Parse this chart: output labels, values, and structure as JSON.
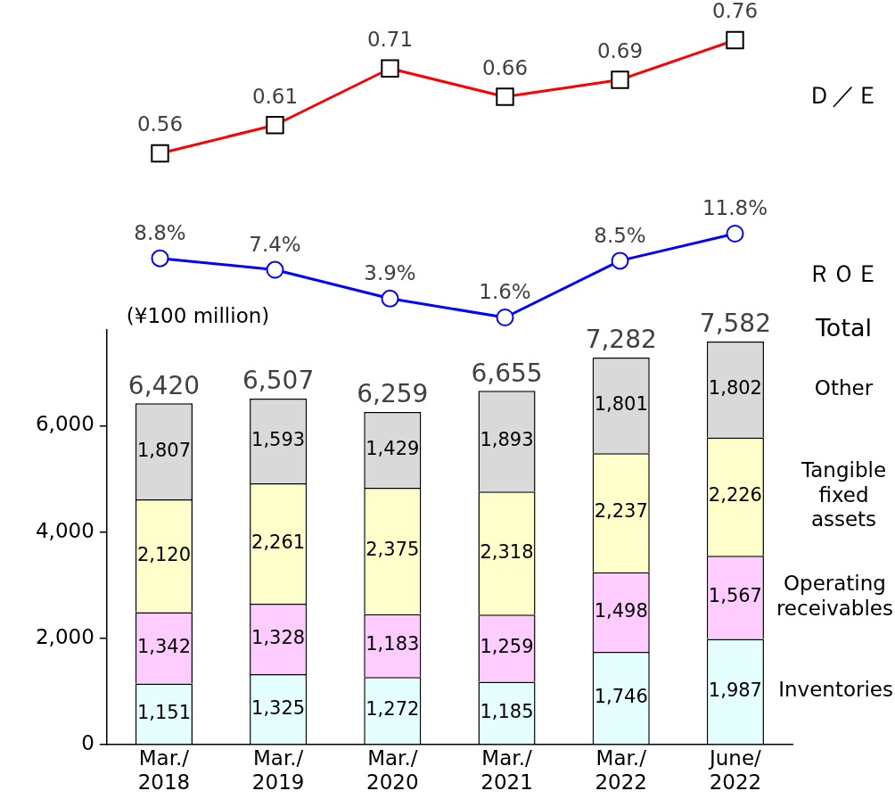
{
  "chart_data": [
    {
      "type": "line",
      "categories": [
        null,
        null,
        null,
        null,
        null,
        null
      ],
      "marker": "square",
      "series": [
        {
          "name": "Ｄ／Ｅ",
          "color": "#ff0000",
          "values": [
            0.56,
            0.61,
            0.71,
            0.66,
            0.69,
            0.76
          ],
          "value_labels": [
            "0.56",
            "0.61",
            "0.71",
            "0.66",
            "0.69",
            "0.76"
          ]
        }
      ]
    },
    {
      "type": "line",
      "categories": [
        null,
        null,
        null,
        null,
        null,
        null
      ],
      "marker": "circle",
      "series": [
        {
          "name": "ＲＯＥ",
          "color": "#0000ff",
          "values": [
            8.8,
            7.4,
            3.9,
            1.6,
            8.5,
            11.8
          ],
          "value_labels": [
            "8.8%",
            "7.4%",
            "3.9%",
            "1.6%",
            "8.5%",
            "11.8%"
          ]
        }
      ]
    },
    {
      "type": "bar",
      "stacked": true,
      "ylabel": "(¥100 million)",
      "categories": [
        "Mar./\n2018",
        "Mar./\n2019",
        "Mar./\n2020",
        "Mar./\n2021",
        "Mar./\n2022",
        "June/\n2022"
      ],
      "series": [
        {
          "name": "Inventories",
          "color": "#e5ffff",
          "values": [
            1151,
            1325,
            1272,
            1185,
            1746,
            1987
          ],
          "value_labels": [
            "1,151",
            "1,325",
            "1,272",
            "1,185",
            "1,746",
            "1,987"
          ]
        },
        {
          "name": "Operating receivables",
          "color": "#ffccff",
          "values": [
            1342,
            1328,
            1183,
            1259,
            1498,
            1567
          ],
          "value_labels": [
            "1,342",
            "1,328",
            "1,183",
            "1,259",
            "1,498",
            "1,567"
          ]
        },
        {
          "name": "Tangible fixed assets",
          "color": "#ffffcc",
          "values": [
            2120,
            2261,
            2375,
            2318,
            2237,
            2226
          ],
          "value_labels": [
            "2,120",
            "2,261",
            "2,375",
            "2,318",
            "2,237",
            "2,226"
          ]
        },
        {
          "name": "Other",
          "color": "#d9d9d9",
          "values": [
            1807,
            1593,
            1429,
            1893,
            1801,
            1802
          ],
          "value_labels": [
            "1,807",
            "1,593",
            "1,429",
            "1,893",
            "1,801",
            "1,802"
          ]
        }
      ],
      "totals": [
        "6,420",
        "6,507",
        "6,259",
        "6,655",
        "7,282",
        "7,582"
      ],
      "annotations": [
        "Total"
      ],
      "ylim": [
        0,
        7800
      ],
      "yticks": [
        0,
        {
          "value": 2000,
          "label": "2,000"
        },
        {
          "value": 4000,
          "label": "4,000"
        },
        {
          "value": 6000,
          "label": "6,000"
        }
      ]
    }
  ]
}
